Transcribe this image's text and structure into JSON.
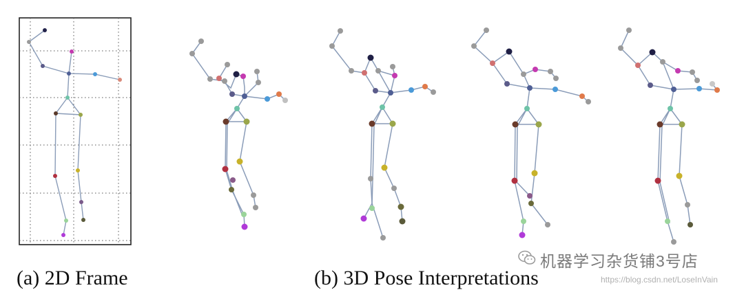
{
  "captions": {
    "a": "(a)  2D Frame",
    "b": "(b)  3D Pose Interpretations"
  },
  "watermark": {
    "name": "机器学习杂货铺3号店",
    "url": "https://blog.csdn.net/LoseInVain",
    "icon": "wechat-icon"
  },
  "colors": {
    "bone": "#8a9cb8",
    "grid": "#555555",
    "frame": "#222222",
    "joint_gray": "#9a9a9a"
  }
}
